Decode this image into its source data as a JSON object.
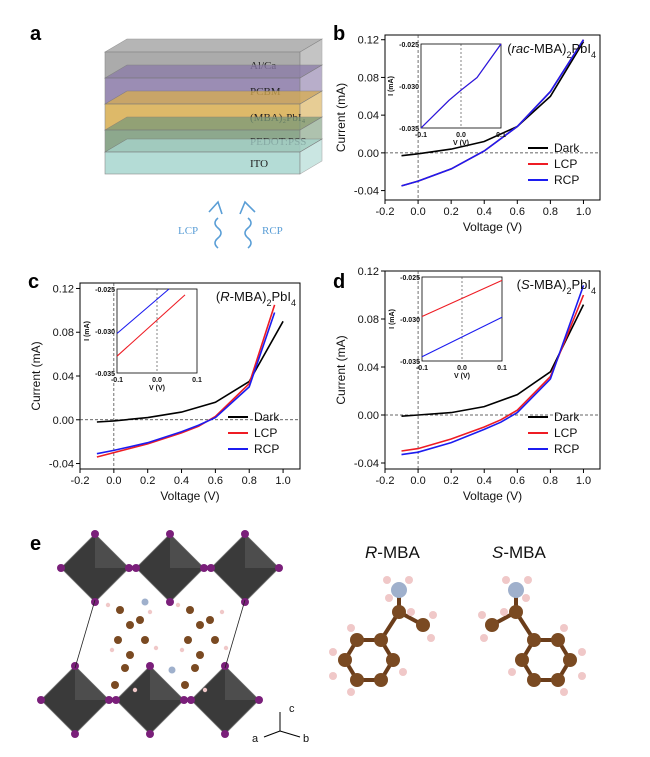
{
  "panels": {
    "a": "a",
    "b": "b",
    "c": "c",
    "d": "d",
    "e": "e"
  },
  "device": {
    "layers": [
      "Al/Ca",
      "PCBM",
      "(MBA)₂PbI₄",
      "PEDOT:PSS",
      "ITO"
    ],
    "layer_colors": [
      "#9d9d9d",
      "#8a7aa8",
      "#d8ad4f",
      "#7a9a7a",
      "#a8d6cf"
    ],
    "light_left": "LCP",
    "light_right": "RCP"
  },
  "chart_data": [
    {
      "panel": "b",
      "type": "line",
      "title_pre": "(",
      "title_italic": "rac",
      "title_post": "-MBA)",
      "title_sub": "2",
      "title_end": "PbI",
      "title_sub2": "4",
      "xlabel": "Voltage (V)",
      "ylabel": "Current (mA)",
      "xlim": [
        -0.2,
        1.1
      ],
      "ylim": [
        -0.05,
        0.125
      ],
      "xticks": [
        "-0.2",
        "0.0",
        "0.2",
        "0.4",
        "0.6",
        "0.8",
        "1.0"
      ],
      "yticks": [
        "-0.04",
        "0.00",
        "0.04",
        "0.08",
        "0.12"
      ],
      "series": [
        {
          "name": "Dark",
          "color": "#000000",
          "x": [
            -0.1,
            0.0,
            0.2,
            0.4,
            0.6,
            0.8,
            1.0
          ],
          "y": [
            -0.003,
            -0.001,
            0.004,
            0.012,
            0.028,
            0.06,
            0.118
          ]
        },
        {
          "name": "LCP",
          "color": "#ee1c24",
          "x": [
            -0.1,
            0.0,
            0.2,
            0.4,
            0.6,
            0.8,
            1.0
          ],
          "y": [
            -0.035,
            -0.03,
            -0.017,
            0.002,
            0.028,
            0.065,
            0.12
          ]
        },
        {
          "name": "RCP",
          "color": "#1c1cf0",
          "x": [
            -0.1,
            0.0,
            0.2,
            0.4,
            0.6,
            0.8,
            1.0
          ],
          "y": [
            -0.035,
            -0.03,
            -0.017,
            0.002,
            0.028,
            0.065,
            0.12
          ]
        }
      ],
      "inset": {
        "ylabel": "I (mA)",
        "xlabel": "V (V)",
        "xticks": [
          "-0.1",
          "0.0",
          "0.1"
        ],
        "yticks": [
          "-0.025",
          "-0.030",
          "-0.035"
        ],
        "xlim": [
          -0.1,
          0.1
        ],
        "ylim": [
          -0.035,
          -0.025
        ],
        "series": [
          {
            "name": "LCP",
            "color": "#ee1c24",
            "x": [
              -0.1,
              -0.03,
              0.0,
              0.04,
              0.1
            ],
            "y": [
              -0.035,
              -0.0317,
              -0.0305,
              -0.029,
              -0.025
            ]
          },
          {
            "name": "RCP",
            "color": "#1c1cf0",
            "x": [
              -0.1,
              -0.03,
              0.0,
              0.04,
              0.1
            ],
            "y": [
              -0.035,
              -0.0317,
              -0.0305,
              -0.029,
              -0.025
            ]
          }
        ]
      }
    },
    {
      "panel": "c",
      "type": "line",
      "title_pre": "(",
      "title_italic": "R",
      "title_post": "-MBA)",
      "title_sub": "2",
      "title_end": "PbI",
      "title_sub2": "4",
      "xlabel": "Voltage (V)",
      "ylabel": "Current (mA)",
      "xlim": [
        -0.2,
        1.1
      ],
      "ylim": [
        -0.045,
        0.125
      ],
      "xticks": [
        "-0.2",
        "0.0",
        "0.2",
        "0.4",
        "0.6",
        "0.8",
        "1.0"
      ],
      "yticks": [
        "-0.04",
        "0.00",
        "0.04",
        "0.08",
        "0.12"
      ],
      "series": [
        {
          "name": "Dark",
          "color": "#000000",
          "x": [
            -0.1,
            0.0,
            0.2,
            0.4,
            0.6,
            0.8,
            1.0
          ],
          "y": [
            -0.002,
            -0.001,
            0.002,
            0.007,
            0.016,
            0.035,
            0.09
          ]
        },
        {
          "name": "LCP",
          "color": "#ee1c24",
          "x": [
            -0.1,
            0.0,
            0.2,
            0.4,
            0.5,
            0.6,
            0.8,
            0.95
          ],
          "y": [
            -0.034,
            -0.03,
            -0.022,
            -0.012,
            -0.006,
            0.003,
            0.033,
            0.105
          ]
        },
        {
          "name": "RCP",
          "color": "#1c1cf0",
          "x": [
            -0.1,
            0.0,
            0.2,
            0.4,
            0.5,
            0.6,
            0.8,
            0.95
          ],
          "y": [
            -0.031,
            -0.028,
            -0.021,
            -0.011,
            -0.005,
            0.002,
            0.03,
            0.098
          ]
        }
      ],
      "inset": {
        "ylabel": "I (mA)",
        "xlabel": "V (V)",
        "xticks": [
          "-0.1",
          "0.0",
          "0.1"
        ],
        "yticks": [
          "-0.025",
          "-0.030",
          "-0.035"
        ],
        "xlim": [
          -0.1,
          0.1
        ],
        "ylim": [
          -0.035,
          -0.025
        ],
        "series": [
          {
            "name": "LCP",
            "color": "#ee1c24",
            "x": [
              -0.1,
              0.07
            ],
            "y": [
              -0.033,
              -0.0257
            ]
          },
          {
            "name": "RCP",
            "color": "#1c1cf0",
            "x": [
              -0.1,
              0.03
            ],
            "y": [
              -0.0303,
              -0.025
            ]
          }
        ]
      }
    },
    {
      "panel": "d",
      "type": "line",
      "title_pre": "(",
      "title_italic": "S",
      "title_post": "-MBA)",
      "title_sub": "2",
      "title_end": "PbI",
      "title_sub2": "4",
      "xlabel": "Voltage (V)",
      "ylabel": "Current (mA)",
      "xlim": [
        -0.2,
        1.1
      ],
      "ylim": [
        -0.045,
        0.12
      ],
      "xticks": [
        "-0.2",
        "0.0",
        "0.2",
        "0.4",
        "0.6",
        "0.8",
        "1.0"
      ],
      "yticks": [
        "-0.04",
        "0.00",
        "0.04",
        "0.08",
        "0.12"
      ],
      "series": [
        {
          "name": "Dark",
          "color": "#000000",
          "x": [
            -0.1,
            0.0,
            0.2,
            0.4,
            0.6,
            0.8,
            1.0
          ],
          "y": [
            -0.001,
            0.0,
            0.002,
            0.007,
            0.017,
            0.036,
            0.092
          ]
        },
        {
          "name": "LCP",
          "color": "#ee1c24",
          "x": [
            -0.1,
            0.0,
            0.2,
            0.4,
            0.5,
            0.6,
            0.8,
            1.0
          ],
          "y": [
            -0.03,
            -0.028,
            -0.02,
            -0.01,
            -0.004,
            0.004,
            0.032,
            0.1
          ]
        },
        {
          "name": "RCP",
          "color": "#1c1cf0",
          "x": [
            -0.1,
            0.0,
            0.2,
            0.4,
            0.5,
            0.6,
            0.8,
            1.0
          ],
          "y": [
            -0.033,
            -0.031,
            -0.023,
            -0.012,
            -0.006,
            0.002,
            0.03,
            0.108
          ]
        }
      ],
      "inset": {
        "ylabel": "I (mA)",
        "xlabel": "V (V)",
        "xticks": [
          "-0.1",
          "0.0",
          "0.1"
        ],
        "yticks": [
          "-0.025",
          "-0.030",
          "-0.035"
        ],
        "xlim": [
          -0.1,
          0.1
        ],
        "ylim": [
          -0.035,
          -0.025
        ],
        "series": [
          {
            "name": "LCP",
            "color": "#ee1c24",
            "x": [
              -0.1,
              0.1
            ],
            "y": [
              -0.0297,
              -0.0254
            ]
          },
          {
            "name": "RCP",
            "color": "#1c1cf0",
            "x": [
              -0.1,
              0.1
            ],
            "y": [
              -0.0345,
              -0.0298
            ]
          }
        ]
      }
    }
  ],
  "structure": {
    "axis_a": "a",
    "axis_b": "b",
    "axis_c": "c"
  },
  "molecules": {
    "r_italic": "R",
    "r_rest": "-MBA",
    "s_italic": "S",
    "s_rest": "-MBA"
  },
  "colors": {
    "octahedron": "#3a3a3a",
    "iodine": "#7a1f7a",
    "carbon": "#7a4a22",
    "nitrogen": "#9fb0cc",
    "hydrogen": "#f0c8c8"
  }
}
